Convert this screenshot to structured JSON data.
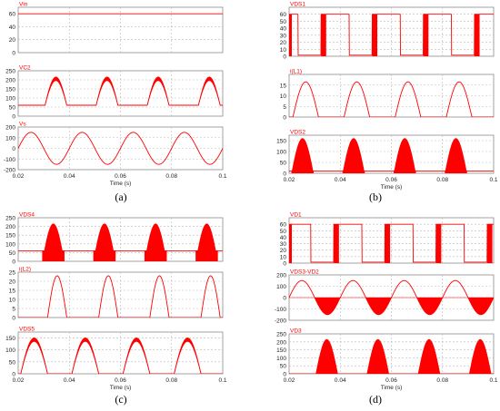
{
  "figure": {
    "captions": [
      "(a)",
      "(b)",
      "(c)",
      "(d)"
    ],
    "time_label": "Time (s)",
    "x_ticks": [
      "0.02",
      "0.04",
      "0.06",
      "0.08",
      "0.1"
    ]
  },
  "colors": {
    "trace": "#ff0000",
    "grid": "#b9b9b9",
    "frame": "#8c8c8c",
    "text": "#222222"
  },
  "chart_data": [
    {
      "panel": "a",
      "type": "line",
      "title": "Vin",
      "xlim": [
        0.02,
        0.1
      ],
      "ylim": [
        0,
        70
      ],
      "yticks": [
        0,
        20,
        40,
        60
      ],
      "series": [
        {
          "name": "Vin",
          "kind": "dc",
          "value": 60
        }
      ]
    },
    {
      "panel": "a",
      "type": "line",
      "title": "VC2",
      "xlim": [
        0.02,
        0.1
      ],
      "ylim": [
        0,
        250
      ],
      "yticks": [
        0,
        50,
        100,
        150,
        200,
        250
      ],
      "series": [
        {
          "name": "VC2",
          "kind": "hump_on_base",
          "base": 60,
          "peak": 215,
          "ripple": 20,
          "period": 0.02,
          "start": 0.0305,
          "width": 0.0085
        }
      ]
    },
    {
      "panel": "a",
      "type": "line",
      "title": "Vs",
      "xlim": [
        0.02,
        0.1
      ],
      "ylim": [
        -200,
        200
      ],
      "yticks": [
        -200,
        -100,
        0,
        100,
        200
      ],
      "series": [
        {
          "name": "Vs",
          "kind": "sine",
          "amplitude": 150,
          "frequency": 50
        }
      ]
    },
    {
      "panel": "b",
      "type": "line",
      "title": "VDS1",
      "xlim": [
        0.02,
        0.1
      ],
      "ylim": [
        0,
        70
      ],
      "yticks": [
        0,
        10,
        20,
        30,
        40,
        50,
        60
      ],
      "series": [
        {
          "name": "VDS1",
          "kind": "switching_square",
          "high": 60,
          "period": 0.02,
          "off_start": 0.0235,
          "off_end": 0.0325,
          "burst_start": 0.0325,
          "burst_end": 0.0345
        }
      ]
    },
    {
      "panel": "b",
      "type": "line",
      "title": "i(L1)",
      "xlim": [
        0.02,
        0.1
      ],
      "ylim": [
        0,
        20
      ],
      "yticks": [
        0,
        5,
        10,
        15
      ],
      "series": [
        {
          "name": "i(L1)",
          "kind": "sine_pulse",
          "peak": 16.5,
          "period": 0.02,
          "start": 0.0215,
          "width": 0.01
        }
      ]
    },
    {
      "panel": "b",
      "type": "area",
      "title": "VDS2",
      "xlim": [
        0.02,
        0.1
      ],
      "ylim": [
        0,
        175
      ],
      "yticks": [
        0,
        50,
        100,
        150
      ],
      "series": [
        {
          "name": "VDS2",
          "kind": "filled_pulse",
          "peak": 160,
          "period": 0.02,
          "start": 0.021,
          "width": 0.0085,
          "floor": 10
        }
      ]
    },
    {
      "panel": "c",
      "type": "area",
      "title": "VDS4",
      "xlim": [
        0.02,
        0.1
      ],
      "ylim": [
        0,
        250
      ],
      "yticks": [
        0,
        50,
        100,
        150,
        200,
        250
      ],
      "series": [
        {
          "name": "VDS4",
          "kind": "filled_on_base",
          "base": 60,
          "peak": 215,
          "period": 0.02,
          "start": 0.0295,
          "width": 0.0085
        }
      ]
    },
    {
      "panel": "c",
      "type": "line",
      "title": "i(L2)",
      "xlim": [
        0.02,
        0.1
      ],
      "ylim": [
        0,
        25
      ],
      "yticks": [
        0,
        5,
        10,
        15,
        20,
        25
      ],
      "series": [
        {
          "name": "i(L2)",
          "kind": "sine_pulse",
          "peak": 23,
          "period": 0.02,
          "start": 0.0315,
          "width": 0.0075
        }
      ]
    },
    {
      "panel": "c",
      "type": "line",
      "title": "VDS5",
      "xlim": [
        0.02,
        0.1
      ],
      "ylim": [
        0,
        175
      ],
      "yticks": [
        0,
        50,
        100,
        150
      ],
      "series": [
        {
          "name": "VDS5",
          "kind": "hump_banded",
          "peak": 150,
          "ripple": 15,
          "period": 0.02,
          "start": 0.021,
          "width": 0.0105
        }
      ]
    },
    {
      "panel": "d",
      "type": "line",
      "title": "VD1",
      "xlim": [
        0.02,
        0.1
      ],
      "ylim": [
        0,
        70
      ],
      "yticks": [
        0,
        10,
        20,
        30,
        40,
        50,
        60
      ],
      "series": [
        {
          "name": "VD1",
          "kind": "switching_square",
          "high": 60,
          "period": 0.02,
          "off_start": 0.0285,
          "off_end": 0.0375,
          "burst_start": 0.0375,
          "burst_end": 0.0395
        }
      ]
    },
    {
      "panel": "d",
      "type": "line",
      "title": "VDS3-VD2",
      "xlim": [
        0.02,
        0.1
      ],
      "ylim": [
        -200,
        200
      ],
      "yticks": [
        -200,
        -100,
        0,
        100,
        200
      ],
      "series": [
        {
          "name": "VDS3-VD2",
          "kind": "mixed_sine",
          "amplitude": 150,
          "frequency": 50,
          "fill_negative": true
        }
      ]
    },
    {
      "panel": "d",
      "type": "area",
      "title": "VD3",
      "xlim": [
        0.02,
        0.1
      ],
      "ylim": [
        0,
        250
      ],
      "yticks": [
        0,
        50,
        100,
        150,
        200,
        250
      ],
      "series": [
        {
          "name": "VD3",
          "kind": "filled_pulse",
          "peak": 215,
          "period": 0.02,
          "start": 0.0305,
          "width": 0.0085,
          "floor": 0
        }
      ]
    }
  ]
}
